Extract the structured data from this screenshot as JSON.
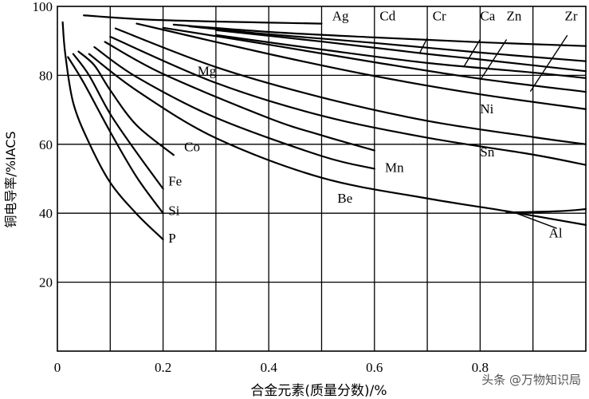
{
  "chart_data": {
    "type": "line",
    "xlabel": "合金元素(质量分数)/%",
    "ylabel": "铜电导率/%IACS",
    "xlim": [
      0,
      1.0
    ],
    "ylim": [
      0,
      100
    ],
    "x_ticks": [
      0,
      0.2,
      0.4,
      0.6,
      0.8
    ],
    "x_tick_labels": [
      "0",
      "0.2",
      "0.4",
      "0.6",
      "0.8"
    ],
    "y_ticks": [
      20,
      40,
      60,
      80,
      100
    ],
    "y_tick_labels": [
      "20",
      "40",
      "60",
      "80",
      "100"
    ],
    "x_gridlines": [
      0.1,
      0.2,
      0.3,
      0.4,
      0.5,
      0.6,
      0.7,
      0.8,
      0.9
    ],
    "y_gridlines": [
      20,
      40,
      60,
      80
    ],
    "series": [
      {
        "name": "Ag",
        "points": [
          [
            0.05,
            97.4
          ],
          [
            0.2,
            96
          ],
          [
            0.5,
            95
          ]
        ]
      },
      {
        "name": "Cd",
        "points": [
          [
            0.22,
            94.7
          ],
          [
            0.4,
            92.6
          ],
          [
            0.6,
            91
          ],
          [
            0.8,
            89.6
          ],
          [
            1.0,
            88.5
          ]
        ]
      },
      {
        "name": "Cr",
        "points": [
          [
            0.25,
            94.2
          ],
          [
            0.4,
            91.9
          ],
          [
            0.6,
            89.4
          ],
          [
            0.8,
            86.6
          ],
          [
            1.0,
            84.1
          ]
        ]
      },
      {
        "name": "Ca",
        "points": [
          [
            0.3,
            93.1
          ],
          [
            0.5,
            89.8
          ],
          [
            0.7,
            86.2
          ],
          [
            0.8,
            84.6
          ],
          [
            1.0,
            81.2
          ]
        ]
      },
      {
        "name": "Zn",
        "points": [
          [
            0.3,
            91.7
          ],
          [
            0.5,
            87.5
          ],
          [
            0.7,
            83.6
          ],
          [
            0.9,
            80.8
          ],
          [
            1.0,
            79.2
          ]
        ]
      },
      {
        "name": "Zr",
        "points": [
          [
            0.2,
            93.8
          ],
          [
            0.4,
            88.9
          ],
          [
            0.6,
            83.8
          ],
          [
            0.8,
            79
          ],
          [
            1.0,
            75.2
          ]
        ]
      },
      {
        "name": "Ni",
        "points": [
          [
            0.15,
            95
          ],
          [
            0.4,
            86.2
          ],
          [
            0.6,
            79.8
          ],
          [
            0.8,
            74.5
          ],
          [
            1.0,
            70.2
          ]
        ]
      },
      {
        "name": "Sn",
        "points": [
          [
            0.11,
            93.6
          ],
          [
            0.3,
            82.4
          ],
          [
            0.5,
            73.6
          ],
          [
            0.7,
            66.8
          ],
          [
            0.9,
            62.1
          ],
          [
            1.0,
            60
          ]
        ]
      },
      {
        "name": "",
        "points": [
          [
            0.1,
            91.2
          ],
          [
            0.3,
            77.8
          ],
          [
            0.5,
            68.3
          ],
          [
            0.7,
            61.9
          ],
          [
            0.9,
            57
          ],
          [
            1.0,
            54
          ]
        ]
      },
      {
        "name": "Mg",
        "points": [
          [
            0.09,
            89.7
          ],
          [
            0.2,
            80.4
          ],
          [
            0.4,
            67.6
          ],
          [
            0.5,
            62.6
          ],
          [
            0.6,
            58.2
          ]
        ]
      },
      {
        "name": "Mn",
        "points": [
          [
            0.07,
            88.2
          ],
          [
            0.15,
            79.5
          ],
          [
            0.3,
            67.7
          ],
          [
            0.5,
            56.6
          ],
          [
            0.6,
            52.9
          ]
        ]
      },
      {
        "name": "Be",
        "points": [
          [
            0.06,
            86.2
          ],
          [
            0.15,
            75.6
          ],
          [
            0.3,
            61.8
          ],
          [
            0.5,
            50.3
          ],
          [
            0.7,
            44.3
          ],
          [
            0.85,
            40.6
          ],
          [
            1.0,
            36.6
          ]
        ]
      },
      {
        "name": "Al",
        "points": [
          [
            0.85,
            40.2
          ],
          [
            0.95,
            40.6
          ],
          [
            1.0,
            41.2
          ]
        ]
      },
      {
        "name": "Co",
        "points": [
          [
            0.04,
            86.9
          ],
          [
            0.07,
            82.9
          ],
          [
            0.1,
            75.7
          ],
          [
            0.15,
            65.5
          ],
          [
            0.22,
            56.9
          ]
        ]
      },
      {
        "name": "Fe",
        "points": [
          [
            0.03,
            86.2
          ],
          [
            0.06,
            80
          ],
          [
            0.1,
            68.8
          ],
          [
            0.15,
            57.6
          ],
          [
            0.2,
            47.1
          ]
        ]
      },
      {
        "name": "Si",
        "points": [
          [
            0.02,
            85.3
          ],
          [
            0.05,
            77.8
          ],
          [
            0.1,
            63.6
          ],
          [
            0.15,
            50.5
          ],
          [
            0.2,
            40
          ]
        ]
      },
      {
        "name": "P",
        "points": [
          [
            0.01,
            95.4
          ],
          [
            0.015,
            86.1
          ],
          [
            0.03,
            72
          ],
          [
            0.06,
            60.4
          ],
          [
            0.1,
            48.9
          ],
          [
            0.15,
            39.8
          ],
          [
            0.2,
            32.4
          ]
        ]
      }
    ],
    "annotations": [
      {
        "text": "Ag",
        "x": 0.52,
        "y": 96
      },
      {
        "text": "Cd",
        "x": 0.61,
        "y": 96
      },
      {
        "text": "Cr",
        "x": 0.71,
        "y": 96
      },
      {
        "text": "Ca",
        "x": 0.8,
        "y": 96
      },
      {
        "text": "Zn",
        "x": 0.85,
        "y": 96
      },
      {
        "text": "Zr",
        "x": 0.96,
        "y": 96
      },
      {
        "text": "Mg",
        "x": 0.265,
        "y": 80
      },
      {
        "text": "Ni",
        "x": 0.8,
        "y": 69
      },
      {
        "text": "Co",
        "x": 0.24,
        "y": 58
      },
      {
        "text": "Sn",
        "x": 0.8,
        "y": 56.5
      },
      {
        "text": "Mn",
        "x": 0.62,
        "y": 52
      },
      {
        "text": "Fe",
        "x": 0.21,
        "y": 48
      },
      {
        "text": "Be",
        "x": 0.53,
        "y": 43
      },
      {
        "text": "Si",
        "x": 0.21,
        "y": 39.5
      },
      {
        "text": "P",
        "x": 0.21,
        "y": 31.5
      },
      {
        "text": "Al",
        "x": 0.93,
        "y": 33
      }
    ],
    "leaders": [
      {
        "label": "Cr",
        "from": [
          0.7,
          90.8
        ],
        "to": [
          0.685,
          86.3
        ]
      },
      {
        "label": "Ca",
        "from": [
          0.8,
          90.4
        ],
        "to": [
          0.77,
          82.7
        ]
      },
      {
        "label": "Zn",
        "from": [
          0.85,
          90.4
        ],
        "to": [
          0.8,
          78.6
        ]
      },
      {
        "label": "Zr",
        "from": [
          0.965,
          91.6
        ],
        "to": [
          0.895,
          75.3
        ]
      },
      {
        "label": "Al",
        "from": [
          0.945,
          35.6
        ],
        "to": [
          0.865,
          40.2
        ]
      }
    ],
    "grid": true
  },
  "watermark": "头条 @万物知识局"
}
